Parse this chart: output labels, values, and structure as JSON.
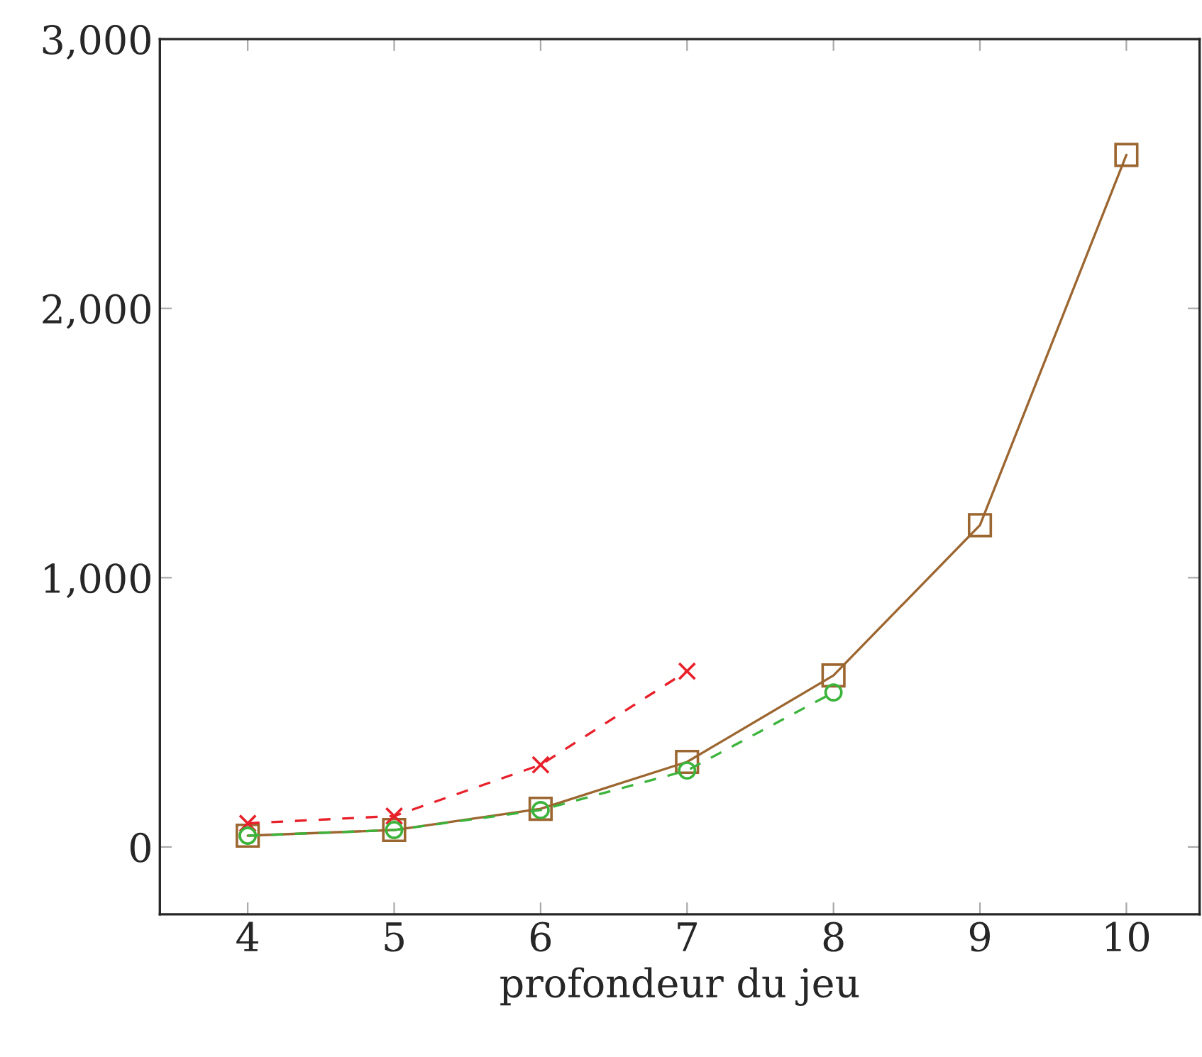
{
  "chart_data": {
    "type": "line",
    "xlabel": "profondeur du jeu",
    "series": [
      {
        "color": "#9c6630",
        "marker": "square",
        "line_style": "solid",
        "x": [
          4,
          5,
          6,
          7,
          8,
          9,
          10
        ],
        "values": [
          42,
          63,
          142,
          316,
          637,
          1195,
          2570
        ]
      },
      {
        "color": "#e8202a",
        "marker": "cross",
        "line_style": "dashed",
        "x": [
          4,
          5,
          6,
          7
        ],
        "values": [
          88,
          115,
          305,
          653
        ]
      },
      {
        "color": "#3cb43c",
        "marker": "circle",
        "line_style": "dashed",
        "x": [
          4,
          5,
          6,
          7,
          8
        ],
        "values": [
          42,
          63,
          137,
          284,
          574
        ]
      }
    ],
    "xlim": [
      3.4,
      10.5
    ],
    "xticks": [
      4,
      5,
      6,
      7,
      8,
      9,
      10
    ],
    "ylim": [
      -250,
      3000
    ],
    "yticks": [
      {
        "value": 0,
        "label": "0"
      },
      {
        "value": 1000,
        "label": "1,000"
      },
      {
        "value": 2000,
        "label": "2,000"
      },
      {
        "value": 3000,
        "label": "3,000"
      }
    ],
    "grid": false
  }
}
